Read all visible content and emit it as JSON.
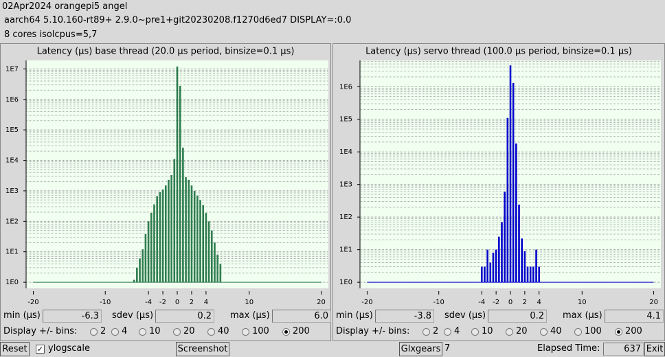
{
  "header": {
    "lines": [
      "02Apr2024 orangepi5 angel",
      "aarch64  5.10.160-rt89+  2.9.0~pre1+git20230208.f1270d6ed7  DISPLAY=:0.0",
      "8 cores  isolcpus=5,7"
    ]
  },
  "chart_data": [
    {
      "type": "bar",
      "title": "Latency (µs) base thread (20.0 µs period, binsize=0.1 µs)",
      "color": "#2e7d4f",
      "x": [
        -6,
        -5.6,
        -5.2,
        -4.8,
        -4.4,
        -4,
        -3.6,
        -3.2,
        -2.8,
        -2.4,
        -2,
        -1.6,
        -1.2,
        -0.8,
        -0.4,
        0,
        0.4,
        0.8,
        1.2,
        1.6,
        2,
        2.4,
        2.8,
        3.2,
        3.6,
        4,
        4.4,
        4.8,
        5.2,
        5.6,
        6
      ],
      "values": [
        1.2,
        3,
        6,
        12,
        38,
        100,
        190,
        360,
        660,
        900,
        1100,
        1500,
        2300,
        3300,
        11000,
        12000000,
        2800000,
        26000,
        2800,
        2300,
        1500,
        1000,
        700,
        500,
        340,
        190,
        100,
        50,
        20,
        8,
        4
      ],
      "xlim": [
        -21,
        21
      ],
      "xticks": [
        -20,
        -10,
        -4,
        -2,
        0,
        2,
        4,
        10,
        20
      ],
      "ylim": [
        0.63,
        19000000
      ],
      "yticks": [
        {
          "value": 1,
          "label": "1E0"
        },
        {
          "value": 10,
          "label": "1E1"
        },
        {
          "value": 100,
          "label": "1E2"
        },
        {
          "value": 1000,
          "label": "1E3"
        },
        {
          "value": 10000,
          "label": "1E4"
        },
        {
          "value": 100000,
          "label": "1E5"
        },
        {
          "value": 1000000,
          "label": "1E6"
        },
        {
          "value": 10000000,
          "label": "1E7"
        }
      ],
      "log_scale": true,
      "grid": true
    },
    {
      "type": "bar",
      "title": "Latency (µs) servo thread (100.0 µs period, binsize=0.1 µs)",
      "color": "#0000cc",
      "x": [
        -4,
        -3.6,
        -3.2,
        -2.8,
        -2.4,
        -2,
        -1.6,
        -1.2,
        -0.8,
        -0.4,
        0,
        0.4,
        0.8,
        1.2,
        1.6,
        2,
        2.4,
        2.8,
        3.2,
        3.6,
        4
      ],
      "values": [
        3,
        3,
        10,
        4,
        8,
        10,
        25,
        70,
        600,
        110000,
        4500000,
        1300000,
        18000,
        240,
        22,
        9,
        3,
        3,
        3,
        10,
        3
      ],
      "xlim": [
        -21,
        21
      ],
      "xticks": [
        -20,
        -10,
        -4,
        -2,
        0,
        2,
        4,
        10,
        20
      ],
      "ylim": [
        0.65,
        6400000
      ],
      "yticks": [
        {
          "value": 1,
          "label": "1E0"
        },
        {
          "value": 10,
          "label": "1E1"
        },
        {
          "value": 100,
          "label": "1E2"
        },
        {
          "value": 1000,
          "label": "1E3"
        },
        {
          "value": 10000,
          "label": "1E4"
        },
        {
          "value": 100000,
          "label": "1E5"
        },
        {
          "value": 1000000,
          "label": "1E6"
        }
      ],
      "log_scale": true,
      "grid": true
    }
  ],
  "stats": [
    {
      "min_label": "min (µs)",
      "min": "-6.3",
      "sdev_label": "sdev (µs)",
      "sdev": "0.2",
      "max_label": "max (µs)",
      "max": "6.0",
      "bins_label": "Display +/- bins:",
      "bins": [
        2,
        4,
        10,
        20,
        40,
        100,
        200
      ],
      "selected_bins": 200
    },
    {
      "min_label": "min (µs)",
      "min": "-3.8",
      "sdev_label": "sdev (µs)",
      "sdev": "0.2",
      "max_label": "max (µs)",
      "max": "4.1",
      "bins_label": "Display +/- bins:",
      "bins": [
        2,
        4,
        10,
        20,
        40,
        100,
        200
      ],
      "selected_bins": 200
    }
  ],
  "footer": {
    "reset": "Reset",
    "ylogscale": "ylogscale",
    "ylogscale_checked": true,
    "screenshot": "Screenshot",
    "glxgears": "Glxgears",
    "glxgears_count": 7,
    "elapsed_label": "Elapsed Time:",
    "elapsed": 637,
    "exit": "Exit"
  }
}
